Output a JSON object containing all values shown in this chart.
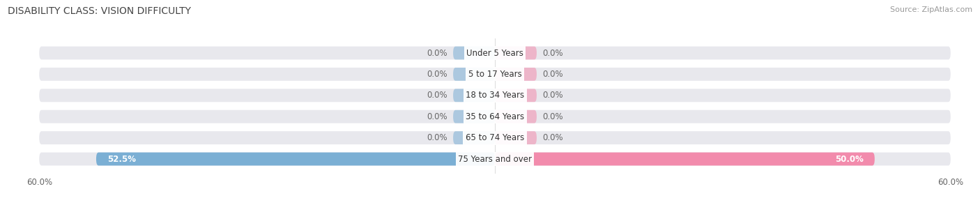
{
  "title": "DISABILITY CLASS: VISION DIFFICULTY",
  "source": "Source: ZipAtlas.com",
  "categories": [
    "Under 5 Years",
    "5 to 17 Years",
    "18 to 34 Years",
    "35 to 64 Years",
    "65 to 74 Years",
    "75 Years and over"
  ],
  "male_values": [
    0.0,
    0.0,
    0.0,
    0.0,
    0.0,
    52.5
  ],
  "female_values": [
    0.0,
    0.0,
    0.0,
    0.0,
    0.0,
    50.0
  ],
  "male_color": "#7bafd4",
  "female_color": "#f28bac",
  "bar_bg_color": "#e8e8ed",
  "axis_limit": 60.0,
  "title_fontsize": 10,
  "label_fontsize": 8.5,
  "tick_fontsize": 8.5,
  "source_fontsize": 8,
  "bar_height": 0.62,
  "zero_stub": 5.5,
  "figsize": [
    14.06,
    3.04
  ],
  "dpi": 100
}
